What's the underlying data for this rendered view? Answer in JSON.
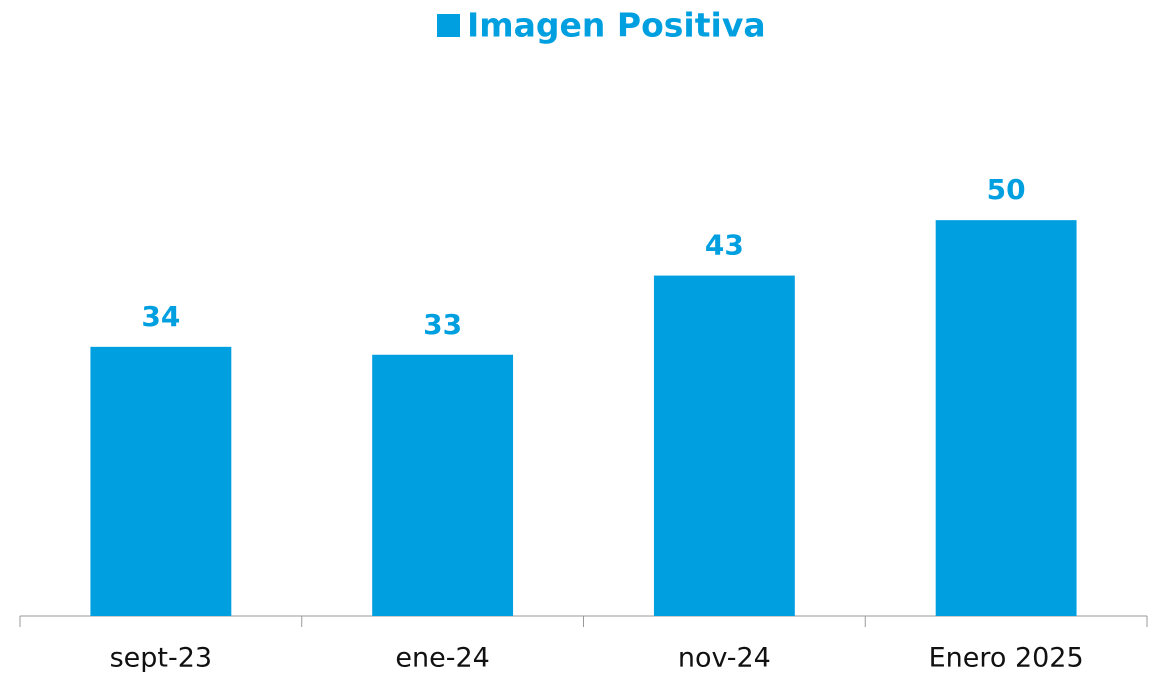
{
  "chart_data": {
    "type": "bar",
    "title": "Imagen Positiva",
    "categories": [
      "sept-23",
      "ene-24",
      "nov-24",
      "Enero 2025"
    ],
    "series": [
      {
        "name": "Imagen Positiva",
        "color": "#009fe0",
        "values": [
          34,
          33,
          43,
          50
        ]
      }
    ],
    "ylim": [
      0,
      60
    ],
    "legend": "top"
  }
}
